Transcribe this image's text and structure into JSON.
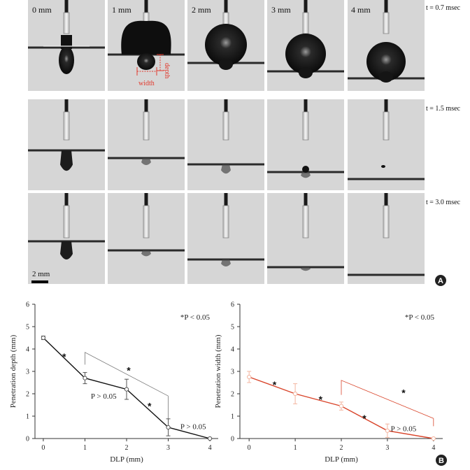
{
  "panel_a": {
    "badge": "A",
    "columns": [
      "0 mm",
      "1 mm",
      "2 mm",
      "3 mm",
      "4 mm"
    ],
    "rows": [
      "t = 0.7 msec",
      "t = 1.5 msec",
      "t = 3.0 msec"
    ],
    "scale_bar": "2 mm",
    "annotations": {
      "depth": "depth",
      "width": "width"
    }
  },
  "panel_b": {
    "badge": "B"
  },
  "colors": {
    "left_series": "#111111",
    "right_series": "#d9452b",
    "right_marker": "#f3b49f"
  },
  "chart_data": [
    {
      "type": "line",
      "title": "",
      "xlabel": "DLP (mm)",
      "ylabel": "Penetration depth (mm)",
      "x": [
        0,
        1,
        2,
        3,
        4
      ],
      "xticks": [
        "0",
        "1",
        "2",
        "3",
        "4"
      ],
      "ylim": [
        0,
        6
      ],
      "yticks": [
        "0",
        "1",
        "2",
        "3",
        "4",
        "5",
        "6"
      ],
      "series": [
        {
          "name": "depth",
          "values": [
            4.5,
            2.7,
            2.2,
            0.5,
            0.0
          ],
          "errors": [
            0.08,
            0.25,
            0.45,
            0.38,
            0.02
          ]
        }
      ],
      "sig_legend": "*P < 0.05",
      "annotations": [
        {
          "text": "*",
          "x": 0.5,
          "y": 3.65
        },
        {
          "text": "*",
          "x": 2.55,
          "y": 1.45
        },
        {
          "text": "*",
          "x": 2.05,
          "y": 3.05
        },
        {
          "text": "P > 0.05",
          "x": 1.45,
          "y": 1.9
        },
        {
          "text": "P > 0.05",
          "x": 3.6,
          "y": 0.55
        }
      ],
      "bracket": {
        "x1": 1,
        "x2": 3,
        "y_top": 3.85,
        "y_end_left": 3.3,
        "y_end_right": 1.9
      }
    },
    {
      "type": "line",
      "title": "",
      "xlabel": "DLP (mm)",
      "ylabel": "Penetration width (mm)",
      "x": [
        0,
        1,
        2,
        3,
        4
      ],
      "xticks": [
        "0",
        "1",
        "2",
        "3",
        "4"
      ],
      "ylim": [
        0,
        6
      ],
      "yticks": [
        "0",
        "1",
        "2",
        "3",
        "4",
        "5",
        "6"
      ],
      "series": [
        {
          "name": "width",
          "values": [
            2.75,
            2.0,
            1.45,
            0.35,
            0.0
          ],
          "errors": [
            0.25,
            0.45,
            0.18,
            0.3,
            0.02
          ]
        }
      ],
      "sig_legend": "*P < 0.05",
      "annotations": [
        {
          "text": "*",
          "x": 0.55,
          "y": 2.4
        },
        {
          "text": "*",
          "x": 1.55,
          "y": 1.75
        },
        {
          "text": "*",
          "x": 2.5,
          "y": 0.9
        },
        {
          "text": "*",
          "x": 3.35,
          "y": 2.05
        },
        {
          "text": "P > 0.05",
          "x": 3.35,
          "y": 0.45
        }
      ],
      "bracket": {
        "x1": 2,
        "x2": 4,
        "y_top": 2.6,
        "y_end_left": 1.95,
        "y_end_right": 0.9
      }
    }
  ]
}
